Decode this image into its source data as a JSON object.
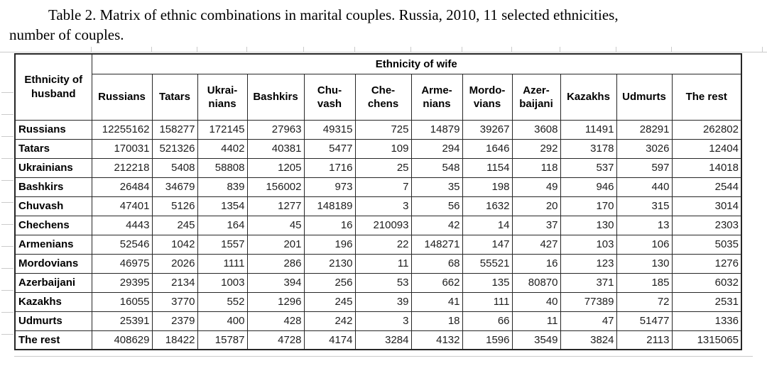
{
  "caption": {
    "line1": "Table 2. Matrix of ethnic combinations in marital couples. Russia, 2010, 11 selected ethnicities,",
    "line2": "number of couples."
  },
  "table": {
    "row_dimension_title": "Ethnicity of husband",
    "col_dimension_title": "Ethnicity of wife",
    "wife_columns": [
      "Russians",
      "Tatars",
      "Ukrai-\nnians",
      "Bashkirs",
      "Chu-\nvash",
      "Che-\nchens",
      "Arme-\nnians",
      "Mordo-\nvians",
      "Azer-\nbaijani",
      "Kazakhs",
      "Udmurts",
      "The rest"
    ],
    "husband_rows": [
      {
        "label": "Russians",
        "values": [
          12255162,
          158277,
          172145,
          27963,
          49315,
          725,
          14879,
          39267,
          3608,
          11491,
          28291,
          262802
        ]
      },
      {
        "label": "Tatars",
        "values": [
          170031,
          521326,
          4402,
          40381,
          5477,
          109,
          294,
          1646,
          292,
          3178,
          3026,
          12404
        ]
      },
      {
        "label": "Ukrainians",
        "values": [
          212218,
          5408,
          58808,
          1205,
          1716,
          25,
          548,
          1154,
          118,
          537,
          597,
          14018
        ]
      },
      {
        "label": "Bashkirs",
        "values": [
          26484,
          34679,
          839,
          156002,
          973,
          7,
          35,
          198,
          49,
          946,
          440,
          2544
        ]
      },
      {
        "label": "Chuvash",
        "values": [
          47401,
          5126,
          1354,
          1277,
          148189,
          3,
          56,
          1632,
          20,
          170,
          315,
          3014
        ]
      },
      {
        "label": "Chechens",
        "values": [
          4443,
          245,
          164,
          45,
          16,
          210093,
          42,
          14,
          37,
          130,
          13,
          2303
        ]
      },
      {
        "label": "Armenians",
        "values": [
          52546,
          1042,
          1557,
          201,
          196,
          22,
          148271,
          147,
          427,
          103,
          106,
          5035
        ]
      },
      {
        "label": "Mordovians",
        "values": [
          46975,
          2026,
          1111,
          286,
          2130,
          11,
          68,
          55521,
          16,
          123,
          130,
          1276
        ]
      },
      {
        "label": "Azerbaijani",
        "values": [
          29395,
          2134,
          1003,
          394,
          256,
          53,
          662,
          135,
          80870,
          371,
          185,
          6032
        ]
      },
      {
        "label": "Kazakhs",
        "values": [
          16055,
          3770,
          552,
          1296,
          245,
          39,
          41,
          111,
          40,
          77389,
          72,
          2531
        ]
      },
      {
        "label": "Udmurts",
        "values": [
          25391,
          2379,
          400,
          428,
          242,
          3,
          18,
          66,
          11,
          47,
          51477,
          1336
        ]
      },
      {
        "label": "The rest",
        "values": [
          408629,
          18422,
          15787,
          4728,
          4174,
          3284,
          4132,
          1596,
          3549,
          3824,
          2113,
          1315065
        ]
      }
    ]
  }
}
